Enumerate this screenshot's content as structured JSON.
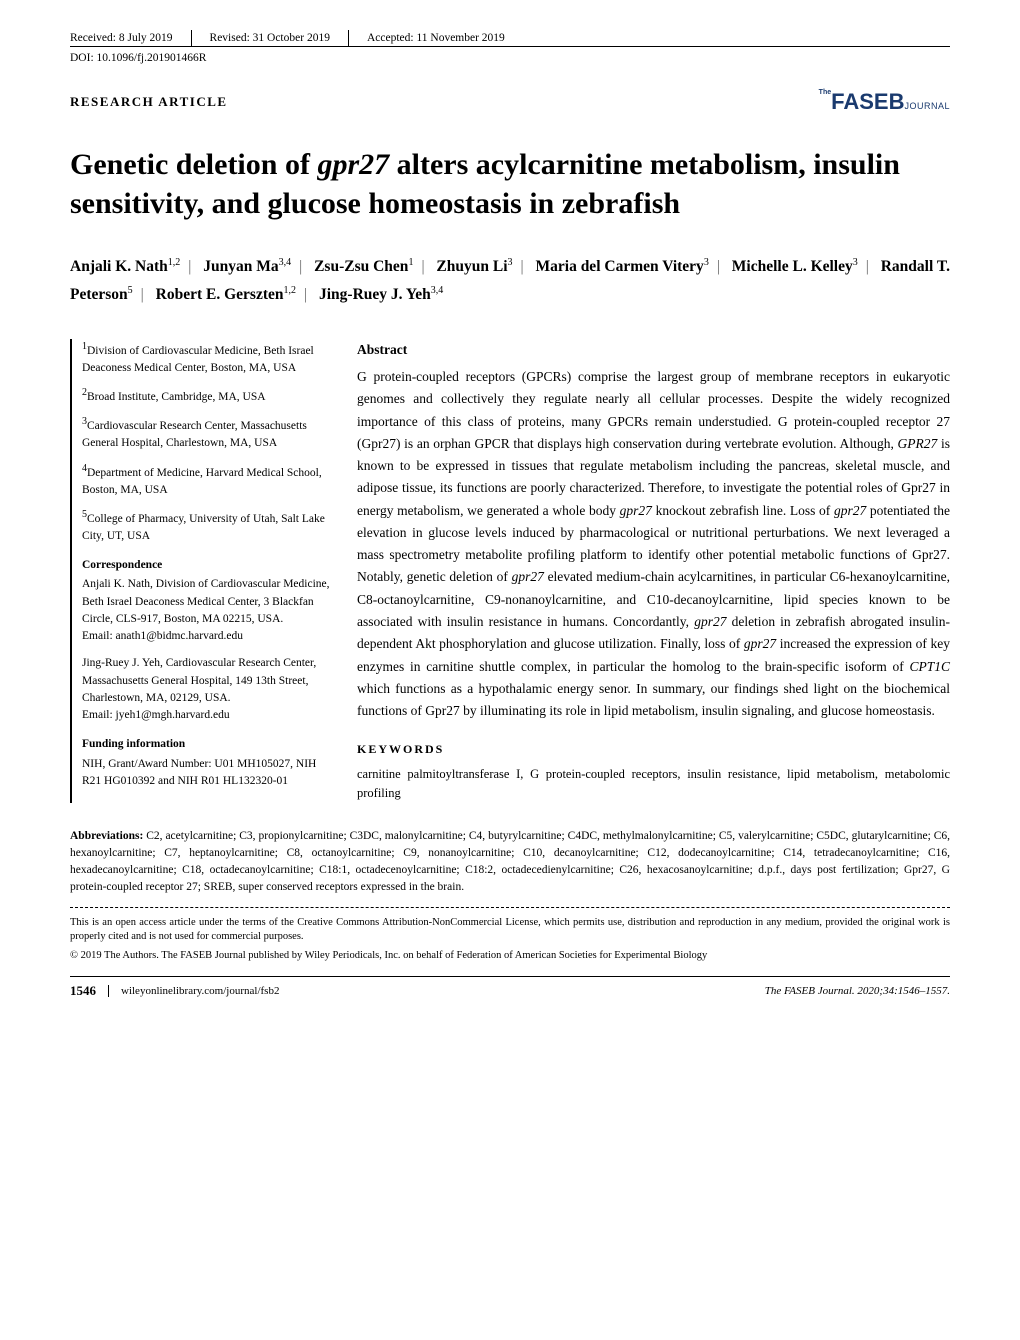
{
  "header": {
    "received": "Received: 8 July 2019",
    "revised": "Revised: 31 October 2019",
    "accepted": "Accepted: 11 November 2019"
  },
  "doi": "DOI: 10.1096/fj.201901466R",
  "article_type": "RESEARCH ARTICLE",
  "logo": {
    "prefix": "The",
    "main": "FASEB",
    "suffix": "JOURNAL"
  },
  "title_part1": "Genetic deletion of ",
  "title_italic": "gpr27",
  "title_part2": " alters acylcarnitine metabolism, insulin sensitivity, and glucose homeostasis in zebrafish",
  "authors": [
    {
      "name": "Anjali K. Nath",
      "sup": "1,2"
    },
    {
      "name": "Junyan Ma",
      "sup": "3,4"
    },
    {
      "name": "Zsu-Zsu Chen",
      "sup": "1"
    },
    {
      "name": "Zhuyun Li",
      "sup": "3"
    },
    {
      "name": "Maria del Carmen Vitery",
      "sup": "3"
    },
    {
      "name": "Michelle L. Kelley",
      "sup": "3"
    },
    {
      "name": "Randall T. Peterson",
      "sup": "5"
    },
    {
      "name": "Robert E. Gerszten",
      "sup": "1,2"
    },
    {
      "name": "Jing-Ruey J. Yeh",
      "sup": "3,4"
    }
  ],
  "affiliations": [
    {
      "sup": "1",
      "text": "Division of Cardiovascular Medicine, Beth Israel Deaconess Medical Center, Boston, MA, USA"
    },
    {
      "sup": "2",
      "text": "Broad Institute, Cambridge, MA, USA"
    },
    {
      "sup": "3",
      "text": "Cardiovascular Research Center, Massachusetts General Hospital, Charlestown, MA, USA"
    },
    {
      "sup": "4",
      "text": "Department of Medicine, Harvard Medical School, Boston, MA, USA"
    },
    {
      "sup": "5",
      "text": "College of Pharmacy, University of Utah, Salt Lake City, UT, USA"
    }
  ],
  "correspondence_label": "Correspondence",
  "correspondence": [
    "Anjali K. Nath, Division of Cardiovascular Medicine, Beth Israel Deaconess Medical Center, 3 Blackfan Circle, CLS-917, Boston, MA 02215, USA.",
    "Email: anath1@bidmc.harvard.edu",
    "Jing-Ruey J. Yeh, Cardiovascular Research Center, Massachusetts General Hospital, 149 13th Street, Charlestown, MA, 02129, USA.",
    "Email: jyeh1@mgh.harvard.edu"
  ],
  "funding_label": "Funding information",
  "funding": "NIH, Grant/Award Number: U01 MH105027, NIH R21 HG010392 and NIH R01 HL132320-01",
  "abstract_label": "Abstract",
  "abstract": "G protein-coupled receptors (GPCRs) comprise the largest group of membrane receptors in eukaryotic genomes and collectively they regulate nearly all cellular processes. Despite the widely recognized importance of this class of proteins, many GPCRs remain understudied. G protein-coupled receptor 27 (Gpr27) is an orphan GPCR that displays high conservation during vertebrate evolution. Although, <em>GPR27</em> is known to be expressed in tissues that regulate metabolism including the pancreas, skeletal muscle, and adipose tissue, its functions are poorly characterized. Therefore, to investigate the potential roles of Gpr27 in energy metabolism, we generated a whole body <em>gpr27</em> knockout zebrafish line. Loss of <em>gpr27</em> potentiated the elevation in glucose levels induced by pharmacological or nutritional perturbations. We next leveraged a mass spectrometry metabolite profiling platform to identify other potential metabolic functions of Gpr27. Notably, genetic deletion of <em>gpr27</em> elevated medium-chain acylcarnitines, in particular C6-hexanoylcarnitine, C8-octanoylcarnitine, C9-nonanoylcarnitine, and C10-decanoylcarnitine, lipid species known to be associated with insulin resistance in humans. Concordantly, <em>gpr27</em> deletion in zebrafish abrogated insulin-dependent Akt phosphorylation and glucose utilization. Finally, loss of <em>gpr27</em> increased the expression of key enzymes in carnitine shuttle complex, in particular the homolog to the brain-specific isoform of <em>CPT1C</em> which functions as a hypothalamic energy senor. In summary, our findings shed light on the biochemical functions of Gpr27 by illuminating its role in lipid metabolism, insulin signaling, and glucose homeostasis.",
  "keywords_label": "KEYWORDS",
  "keywords": "carnitine palmitoyltransferase I, G protein-coupled receptors, insulin resistance, lipid metabolism, metabolomic profiling",
  "abbreviations_label": "Abbreviations:",
  "abbreviations": "C2, acetylcarnitine; C3, propionylcarnitine; C3DC, malonylcarnitine; C4, butyrylcarnitine; C4DC, methylmalonylcarnitine; C5, valerylcarnitine; C5DC, glutarylcarnitine; C6, hexanoylcarnitine; C7, heptanoylcarnitine; C8, octanoylcarnitine; C9, nonanoylcarnitine; C10, decanoylcarnitine; C12, dodecanoylcarnitine; C14, tetradecanoylcarnitine; C16, hexadecanoylcarnitine; C18, octadecanoylcarnitine; C18:1, octadecenoylcarnitine; C18:2, octadecedienylcarnitine; C26, hexacosanoylcarnitine; d.p.f., days post fertilization; Gpr27, G protein-coupled receptor 27; SREB, super conserved receptors expressed in the brain.",
  "license1": "This is an open access article under the terms of the Creative Commons Attribution-NonCommercial License, which permits use, distribution and reproduction in any medium, provided the original work is properly cited and is not used for commercial purposes.",
  "license2": "© 2019 The Authors. The FASEB Journal published by Wiley Periodicals, Inc. on behalf of Federation of American Societies for Experimental Biology",
  "footer": {
    "page": "1546",
    "url": "wileyonlinelibrary.com/journal/fsb2",
    "citation": "The FASEB Journal. 2020;34:1546–1557."
  }
}
